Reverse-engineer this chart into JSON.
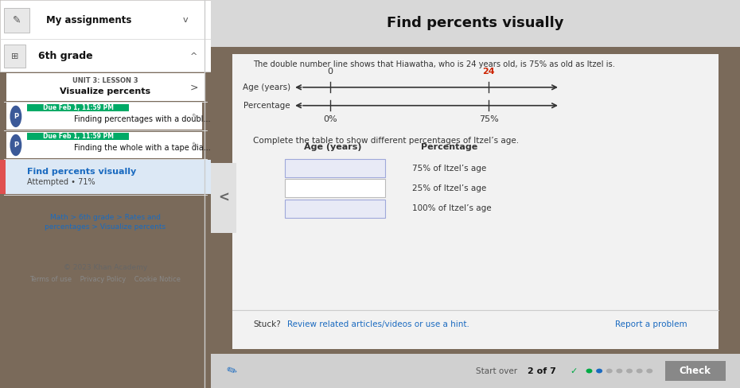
{
  "header_title": "Find percents visually",
  "subtitle": "The double number line shows that Hiawatha, who is 24 years old, is 75% as old as Itzel is.",
  "age_label": "Age (years)",
  "percentage_label": "Percentage",
  "line1_tick1": "0",
  "line1_tick2": "24",
  "line2_tick1": "0%",
  "line2_tick2": "75%",
  "table_title": "Complete the table to show different percentages of Itzel’s age.",
  "col1_header": "Age (years)",
  "col2_header": "Percentage",
  "row1_label": "75% of Itzel’s age",
  "row2_label": "25% of Itzel’s age",
  "row3_label": "100% of Itzel’s age",
  "stuck_text": "Stuck?",
  "stuck_link": "Review related articles/videos or use a hint.",
  "report_link": "Report a problem",
  "bottom_text": "Start over",
  "progress_text": "2 of 7",
  "check_btn": "Check",
  "breadcrumb_line1": "Math > 6th grade > Rates and",
  "breadcrumb_line2": "percentages > Visualize percents",
  "footer_text": "© 2023 Khan Academy",
  "footer_links": "Terms of use    Privacy Policy    Cookie Notice",
  "tick_color_red": "#cc2200",
  "tick_color_black": "#333333",
  "link_color": "#1a6ac0",
  "green_color": "#00aa44",
  "input_bg_highlight": "#e8eaf6",
  "input_border_highlight": "#9fa8da",
  "input_bg_plain": "#ffffff",
  "input_border_plain": "#bbbbbb",
  "dot_colors": [
    "#00aa44",
    "#1a6ac0",
    "#aaaaaa",
    "#aaaaaa",
    "#aaaaaa",
    "#aaaaaa",
    "#aaaaaa"
  ]
}
